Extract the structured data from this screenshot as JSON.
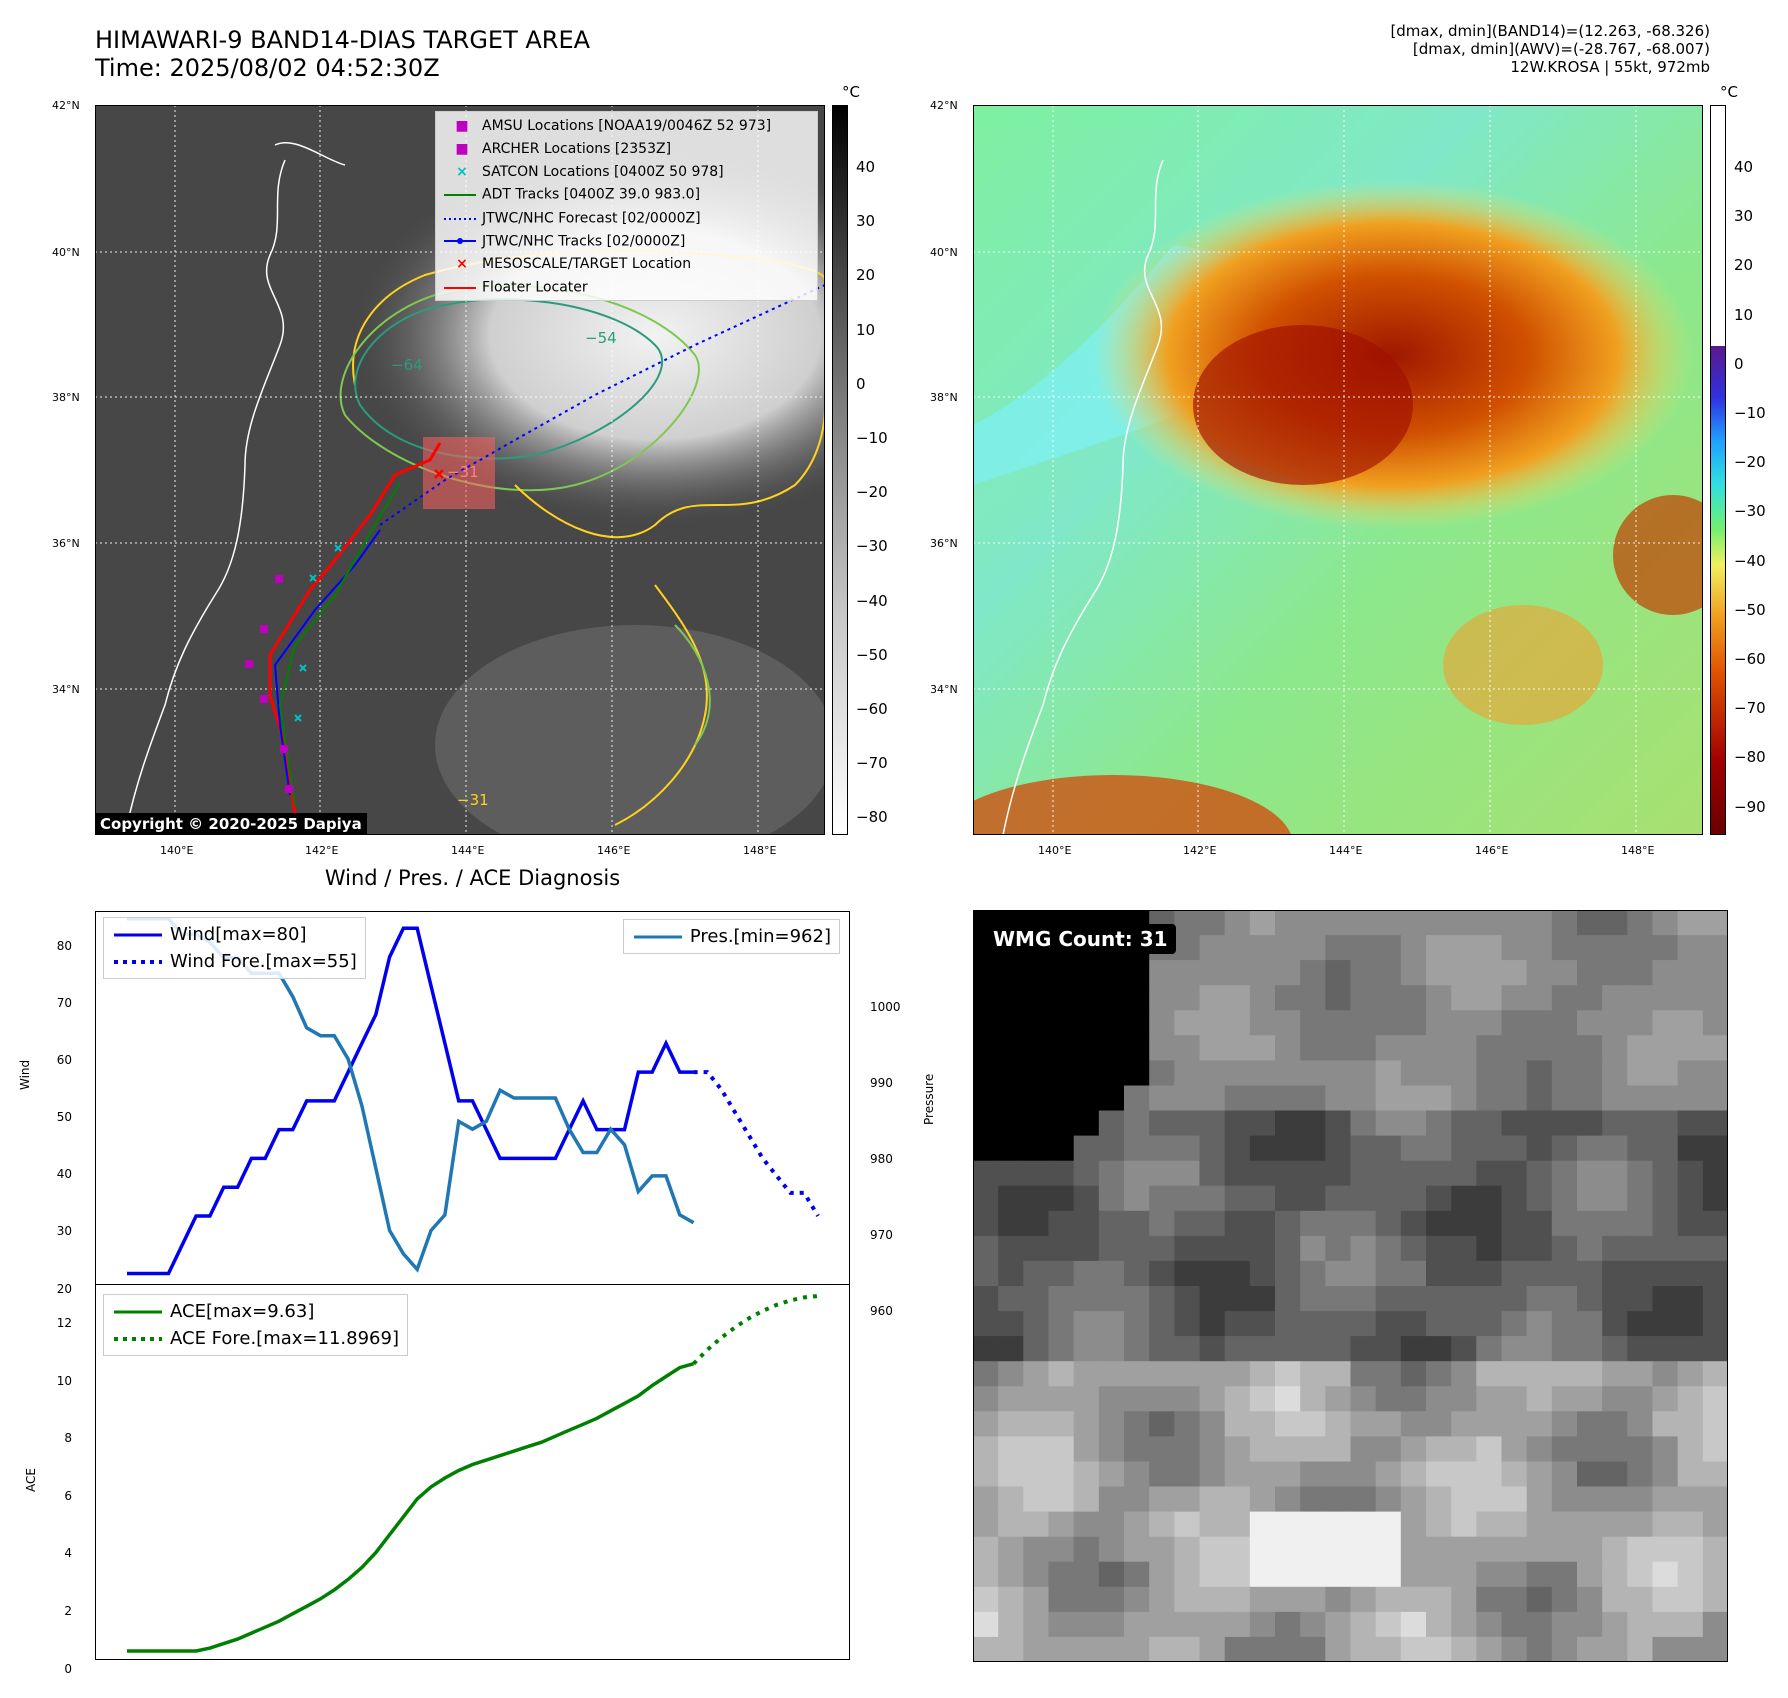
{
  "header": {
    "title_line1": "HIMAWARI-9 BAND14-DIAS TARGET AREA",
    "title_line2": "Time: 2025/08/02 04:52:30Z",
    "info_line1": "[dmax, dmin](BAND14)=(12.263, -68.326)",
    "info_line2": "[dmax, dmin](AWV)=(-28.767, -68.007)",
    "info_line3": "12W.KROSA | 55kt, 972mb"
  },
  "map_left": {
    "lat_labels": [
      "42°N",
      "40°N",
      "38°N",
      "36°N",
      "34°N"
    ],
    "lon_labels": [
      "140°E",
      "142°E",
      "144°E",
      "146°E",
      "148°E"
    ],
    "colorbar_unit": "°C",
    "colorbar_ticks": [
      "40",
      "30",
      "20",
      "10",
      "0",
      "−10",
      "−20",
      "−30",
      "−40",
      "−50",
      "−60",
      "−70",
      "−80"
    ],
    "contour_labels": [
      "−54",
      "−64",
      "−31",
      "−31"
    ],
    "copyright": "Copyright © 2020-2025 Dapiya",
    "legend": [
      {
        "label": "AMSU Locations [NOAA19/0046Z 52 973]",
        "color": "#c000c0",
        "marker": "square"
      },
      {
        "label": "ARCHER Locations [2353Z]",
        "color": "#c000c0",
        "marker": "square"
      },
      {
        "label": "SATCON Locations [0400Z 50 978]",
        "color": "#00c0c0",
        "marker": "x"
      },
      {
        "label": "ADT Tracks [0400Z 39.0 983.0]",
        "color": "#008000",
        "marker": "line"
      },
      {
        "label": "JTWC/NHC Forecast [02/0000Z]",
        "color": "#0000ff",
        "marker": "dotted"
      },
      {
        "label": "JTWC/NHC Tracks [02/0000Z]",
        "color": "#0000ff",
        "marker": "line-dot"
      },
      {
        "label": "MESOSCALE/TARGET Location",
        "color": "#ff0000",
        "marker": "x"
      },
      {
        "label": "Floater Locater",
        "color": "#ff0000",
        "marker": "line"
      }
    ]
  },
  "map_right": {
    "lat_labels": [
      "42°N",
      "40°N",
      "38°N",
      "36°N",
      "34°N"
    ],
    "lon_labels": [
      "140°E",
      "142°E",
      "144°E",
      "146°E",
      "148°E"
    ],
    "colorbar_unit": "°C",
    "colorbar_ticks": [
      "40",
      "30",
      "20",
      "10",
      "0",
      "−10",
      "−20",
      "−30",
      "−40",
      "−50",
      "−60",
      "−70",
      "−80",
      "−90"
    ]
  },
  "diagnosis": {
    "title": "Wind / Pres. / ACE Diagnosis",
    "wind_ylabel": "Wind",
    "pres_ylabel": "Pressure",
    "ace_ylabel": "ACE",
    "wind_ticks": [
      "80",
      "70",
      "60",
      "50",
      "40",
      "30",
      "20"
    ],
    "pres_ticks": [
      "1000",
      "990",
      "980",
      "970",
      "960"
    ],
    "ace_ticks": [
      "12",
      "10",
      "8",
      "6",
      "4",
      "2",
      "0"
    ],
    "legend_wind": "Wind[max=80]",
    "legend_wind_fore": "Wind Fore.[max=55]",
    "legend_pres": "Pres.[min=962]",
    "legend_ace": "ACE[max=9.63]",
    "legend_ace_fore": "ACE Fore.[max=11.8969]"
  },
  "wmg": {
    "label": "WMG Count: 31"
  },
  "colors": {
    "wind": "#0000ee",
    "pressure": "#1f77b4",
    "ace": "#008000",
    "track_red": "#ff0000"
  },
  "chart_data": [
    {
      "type": "line",
      "title": "Wind / Pres. / ACE Diagnosis",
      "ylabel": "Wind",
      "ylim": [
        18,
        83
      ],
      "series": [
        {
          "name": "Wind[max=80]",
          "values": [
            20,
            20,
            20,
            20,
            25,
            30,
            30,
            35,
            35,
            40,
            40,
            45,
            45,
            50,
            50,
            50,
            55,
            60,
            65,
            75,
            80,
            80,
            70,
            60,
            50,
            50,
            45,
            40,
            40,
            40,
            40,
            40,
            45,
            50,
            45,
            45,
            45,
            55,
            55,
            60,
            55,
            55
          ]
        },
        {
          "name": "Wind Fore.[max=55]",
          "values": [
            55,
            55,
            52,
            48,
            44,
            40,
            37,
            34,
            34,
            30
          ],
          "start_index": 41
        }
      ]
    },
    {
      "type": "line",
      "ylabel": "Pressure",
      "ylim": [
        960,
        1008
      ],
      "series": [
        {
          "name": "Pres.[min=962]",
          "values": [
            1007,
            1007,
            1007,
            1007,
            1005,
            1005,
            1004,
            1002,
            1002,
            1000,
            1000,
            1000,
            997,
            993,
            992,
            992,
            989,
            983,
            975,
            967,
            964,
            962,
            967,
            969,
            981,
            980,
            981,
            985,
            984,
            984,
            984,
            984,
            980,
            977,
            977,
            980,
            978,
            972,
            974,
            974,
            969,
            968
          ]
        }
      ]
    },
    {
      "type": "line",
      "ylabel": "ACE",
      "ylim": [
        -0.3,
        12.3
      ],
      "series": [
        {
          "name": "ACE[max=9.63]",
          "values": [
            0,
            0,
            0,
            0,
            0,
            0,
            0.1,
            0.25,
            0.4,
            0.6,
            0.8,
            1.0,
            1.25,
            1.5,
            1.75,
            2.05,
            2.4,
            2.8,
            3.3,
            3.9,
            4.5,
            5.1,
            5.5,
            5.8,
            6.05,
            6.25,
            6.4,
            6.55,
            6.7,
            6.85,
            7.0,
            7.2,
            7.4,
            7.6,
            7.8,
            8.05,
            8.3,
            8.55,
            8.9,
            9.2,
            9.5,
            9.63
          ]
        },
        {
          "name": "ACE Fore.[max=11.8969]",
          "values": [
            9.63,
            10.1,
            10.5,
            10.85,
            11.15,
            11.4,
            11.6,
            11.75,
            11.85,
            11.8969
          ],
          "start_index": 41
        }
      ]
    }
  ]
}
